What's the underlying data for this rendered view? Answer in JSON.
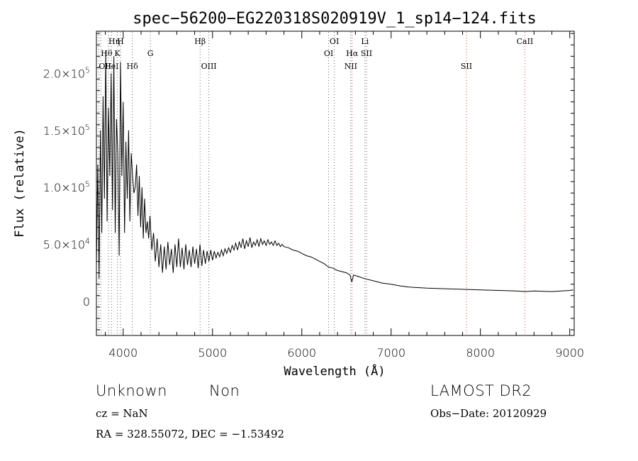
{
  "chart_data": {
    "type": "line",
    "title": "spec−56200−EG220318S020919V_1_sp14−124.fits",
    "xlabel": "Wavelength (Å)",
    "ylabel": "Flux (relative)",
    "xlim": [
      3700,
      9050
    ],
    "ylim": [
      -30000,
      237000
    ],
    "grid": false,
    "x_ticks": [
      {
        "value": 4000,
        "label": "4000"
      },
      {
        "value": 5000,
        "label": "5000"
      },
      {
        "value": 6000,
        "label": "6000"
      },
      {
        "value": 7000,
        "label": "7000"
      },
      {
        "value": 8000,
        "label": "8000"
      },
      {
        "value": 9000,
        "label": "9000"
      }
    ],
    "y_ticks": [
      {
        "value": 0,
        "label": "0",
        "mant": "0",
        "exp": ""
      },
      {
        "value": 50000,
        "label": "5.0×10^4",
        "mant": "5.0×10",
        "exp": "4"
      },
      {
        "value": 100000,
        "label": "1.0×10^5",
        "mant": "1.0×10",
        "exp": "5"
      },
      {
        "value": 150000,
        "label": "1.5×10^5",
        "mant": "1.5×10",
        "exp": "5"
      },
      {
        "value": 200000,
        "label": "2.0×10^5",
        "mant": "2.0×10",
        "exp": "5"
      }
    ],
    "series": [
      {
        "x": [
          3700,
          3715,
          3730,
          3745,
          3760,
          3775,
          3790,
          3805,
          3820,
          3835,
          3850,
          3865,
          3880,
          3895,
          3910,
          3925,
          3940,
          3955,
          3970,
          3985,
          4000,
          4015,
          4030,
          4045,
          4060,
          4075,
          4090,
          4105,
          4120,
          4135,
          4150,
          4165,
          4180,
          4195,
          4210,
          4225,
          4240,
          4255,
          4270,
          4285,
          4300,
          4320,
          4340,
          4360,
          4380,
          4400,
          4420,
          4440,
          4460,
          4480,
          4500,
          4520,
          4540,
          4560,
          4580,
          4600,
          4620,
          4640,
          4660,
          4680,
          4700,
          4720,
          4740,
          4760,
          4780,
          4800,
          4820,
          4840,
          4860,
          4880,
          4900,
          4920,
          4940,
          4960,
          4980,
          5000,
          5020,
          5040,
          5060,
          5080,
          5100,
          5120,
          5140,
          5160,
          5180,
          5200,
          5220,
          5240,
          5260,
          5280,
          5300,
          5320,
          5340,
          5360,
          5380,
          5400,
          5420,
          5440,
          5460,
          5480,
          5500,
          5520,
          5540,
          5560,
          5580,
          5600,
          5620,
          5640,
          5660,
          5680,
          5700,
          5720,
          5740,
          5760,
          5780,
          5800,
          5850,
          5900,
          5950,
          6000,
          6050,
          6100,
          6150,
          6200,
          6250,
          6300,
          6350,
          6400,
          6450,
          6500,
          6540,
          6560,
          6580,
          6620,
          6700,
          6800,
          6900,
          7000,
          7100,
          7200,
          7400,
          7600,
          7800,
          8000,
          8200,
          8400,
          8500,
          8600,
          8800,
          9000,
          9040
        ],
        "y": [
          30000,
          120000,
          20000,
          150000,
          60000,
          180000,
          90000,
          220000,
          70000,
          170000,
          110000,
          200000,
          80000,
          215000,
          60000,
          160000,
          130000,
          40000,
          210000,
          110000,
          175000,
          60000,
          140000,
          90000,
          150000,
          70000,
          130000,
          110000,
          95000,
          100000,
          120000,
          75000,
          110000,
          65000,
          100000,
          55000,
          90000,
          60000,
          70000,
          55000,
          75000,
          45000,
          60000,
          35000,
          55000,
          30000,
          50000,
          25000,
          48000,
          28000,
          52000,
          32000,
          46000,
          25000,
          50000,
          30000,
          55000,
          30000,
          47000,
          28000,
          50000,
          32000,
          45000,
          30000,
          48000,
          33000,
          46000,
          29000,
          50000,
          31000,
          45000,
          33000,
          44000,
          35000,
          45000,
          36000,
          44000,
          38000,
          43000,
          39000,
          45000,
          40000,
          46000,
          42000,
          47000,
          43000,
          49000,
          45000,
          51000,
          45000,
          52000,
          47000,
          55000,
          46000,
          53000,
          48000,
          56000,
          47000,
          52000,
          49000,
          54000,
          48000,
          55000,
          50000,
          53000,
          49000,
          54000,
          50000,
          52000,
          49000,
          53000,
          49000,
          51000,
          48000,
          50000,
          48000,
          47000,
          45000,
          44000,
          42000,
          40000,
          39000,
          37000,
          35000,
          33000,
          30000,
          29000,
          27000,
          26000,
          25000,
          23000,
          17000,
          23000,
          22000,
          20000,
          18000,
          16000,
          15000,
          13500,
          12500,
          11500,
          11000,
          10500,
          10000,
          9500,
          9000,
          8500,
          9000,
          8500,
          9500,
          10000
        ]
      }
    ],
    "line_markers": [
      {
        "wave": 3727,
        "label": "OII",
        "row": 3,
        "align": "start"
      },
      {
        "wave": 3750,
        "label": "Hθ",
        "row": 2,
        "align": "start"
      },
      {
        "wave": 3835,
        "label": "Hη",
        "row": 1,
        "align": "start"
      },
      {
        "wave": 3869,
        "label": "HeI",
        "row": 3,
        "align": "middle"
      },
      {
        "wave": 3934,
        "label": "K",
        "row": 2,
        "align": "middle"
      },
      {
        "wave": 3969,
        "label": "H",
        "row": 1,
        "align": "middle"
      },
      {
        "wave": 4102,
        "label": "Hδ",
        "row": 3,
        "align": "middle"
      },
      {
        "wave": 4304,
        "label": "G",
        "row": 2,
        "align": "middle"
      },
      {
        "wave": 4861,
        "label": "Hβ",
        "row": 1,
        "align": "middle"
      },
      {
        "wave": 4959,
        "label": "OIII",
        "row": 3,
        "align": "middle"
      },
      {
        "wave": 6300,
        "label": "OI",
        "row": 2,
        "align": "middle"
      },
      {
        "wave": 6364,
        "label": "OI",
        "row": 1,
        "align": "middle"
      },
      {
        "wave": 6548,
        "label": "NII",
        "row": 3,
        "align": "middle"
      },
      {
        "wave": 6563,
        "label": "Hα",
        "row": 2,
        "align": "middle",
        "emission": true
      },
      {
        "wave": 6707,
        "label": "Li",
        "row": 1,
        "align": "middle"
      },
      {
        "wave": 6724,
        "label": "SII",
        "row": 2,
        "align": "middle"
      },
      {
        "wave": 7843,
        "label": "SII",
        "row": 3,
        "align": "middle"
      },
      {
        "wave": 8498,
        "label": "CaII",
        "row": 1,
        "align": "middle"
      }
    ]
  },
  "footer": {
    "class_label": "Unknown",
    "subclass_label": "Non",
    "survey_label": "LAMOST DR2",
    "redshift_text": "cz = NaN",
    "obs_date_text": "Obs−Date: 20120929",
    "coords_text": "RA = 328.55072, DEC =  −1.53492"
  }
}
